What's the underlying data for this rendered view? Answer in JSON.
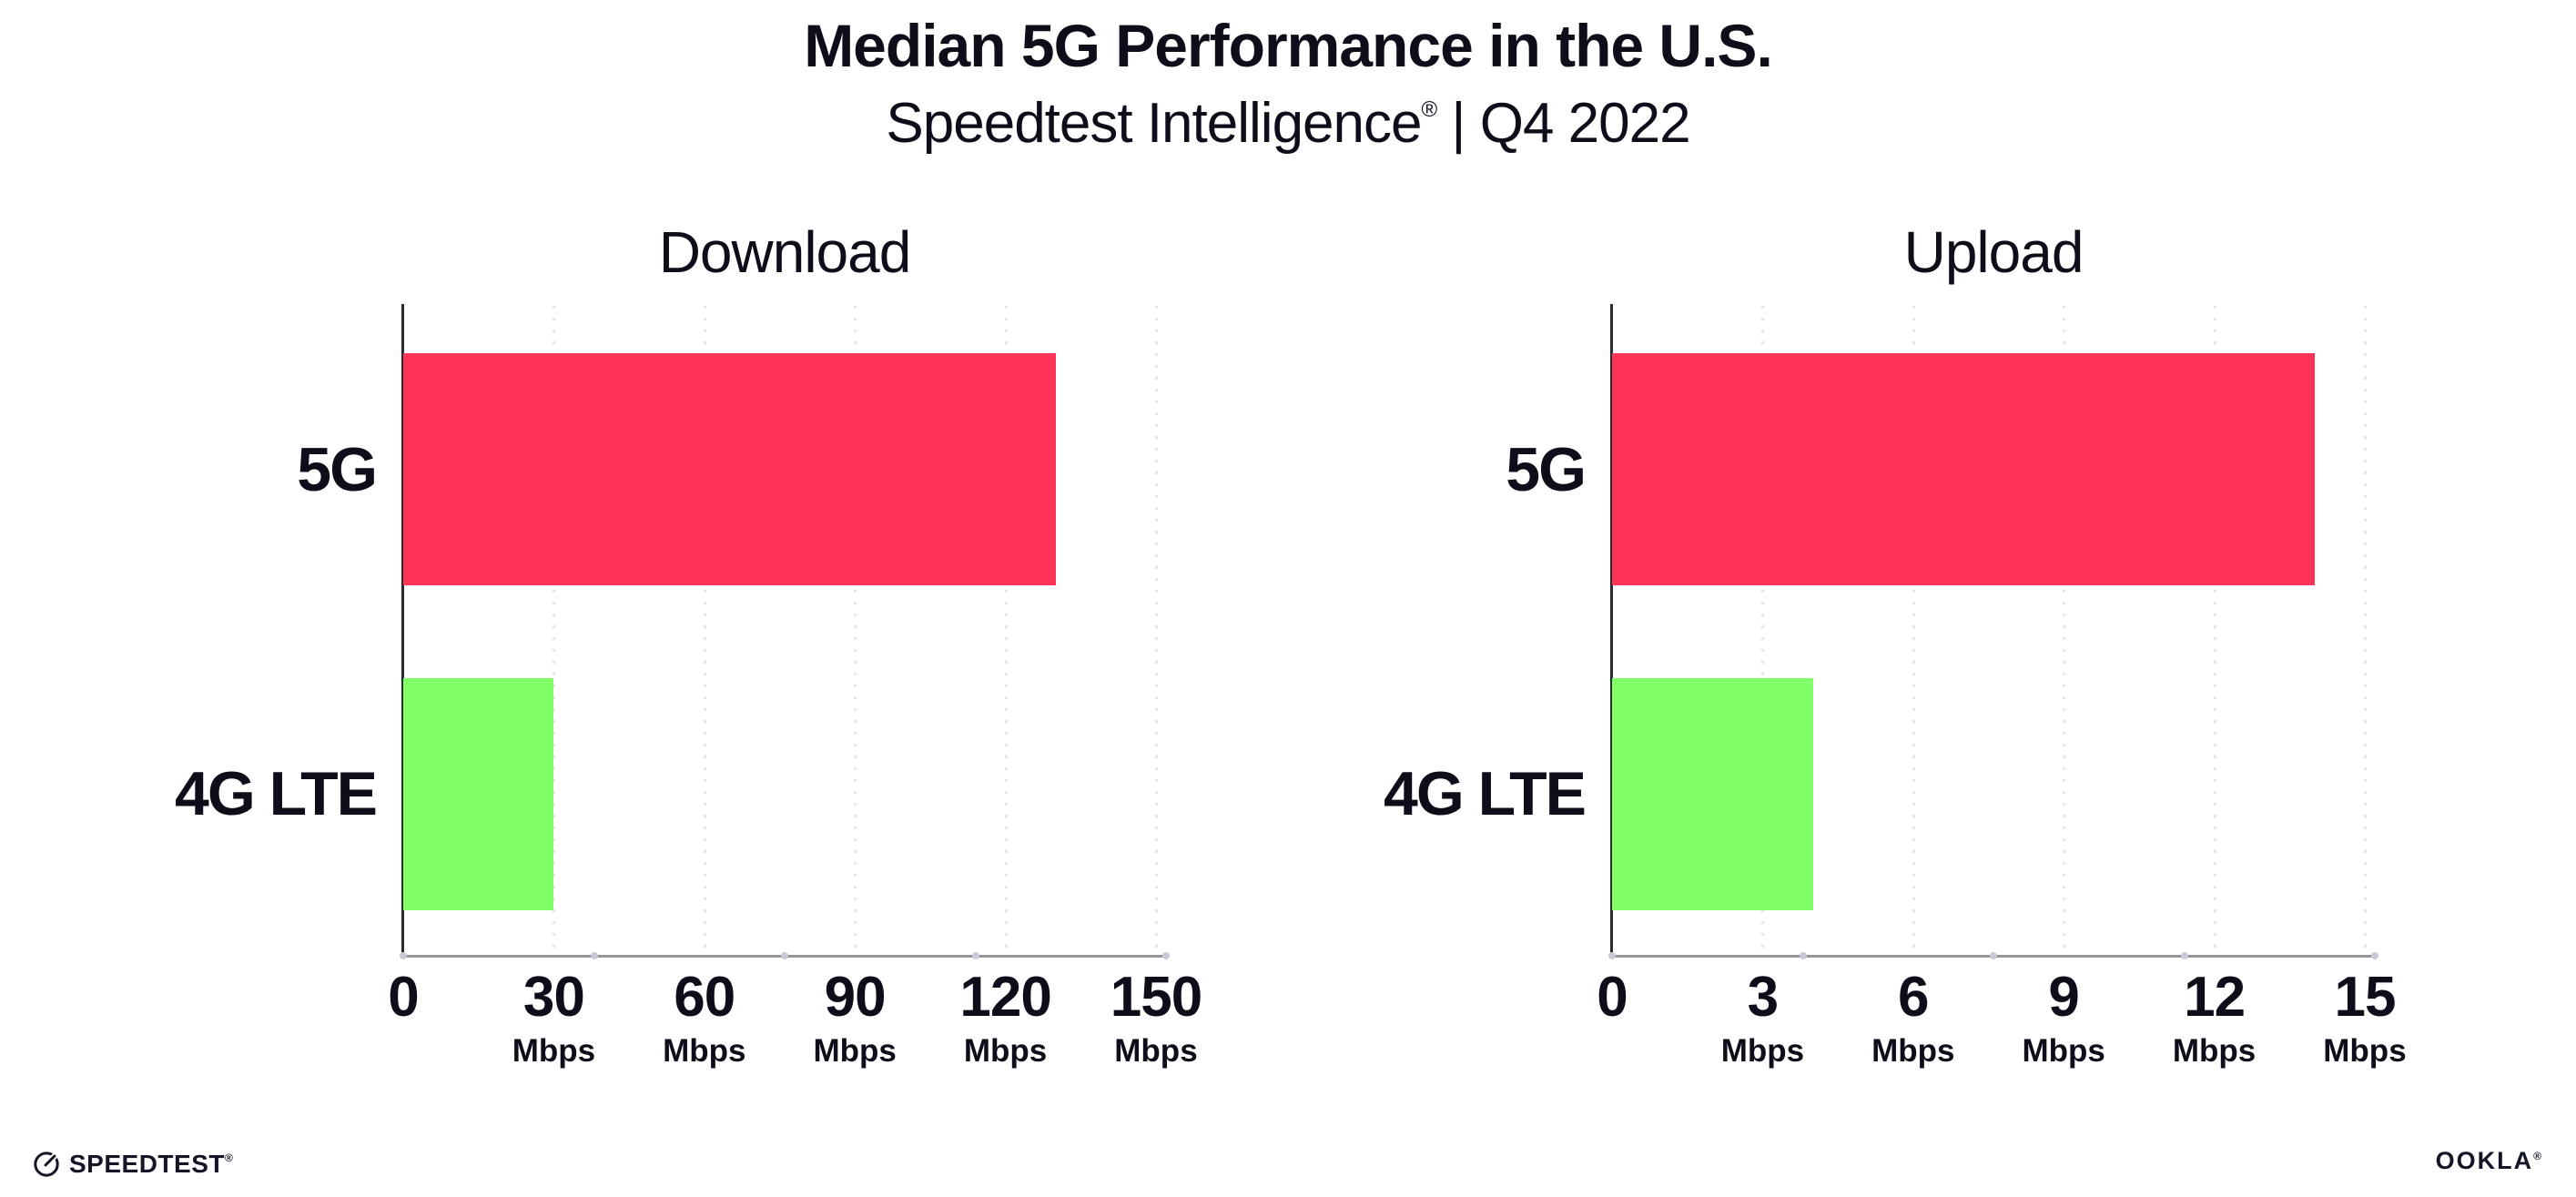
{
  "header": {
    "title": "Median 5G Performance in the U.S.",
    "subtitle_brand": "Speedtest Intelligence",
    "subtitle_reg": "®",
    "subtitle_rest": " | Q4 2022"
  },
  "footer": {
    "speedtest_label": "SPEEDTEST",
    "speedtest_mark": "®",
    "ookla_label": "OOKLA",
    "ookla_mark": "®"
  },
  "icons": {
    "speedtest_gauge": "speedtest-gauge-icon"
  },
  "colors": {
    "bar_5g": "#FF3356",
    "bar_4g_lte": "#80FF66",
    "gridline": "#E4E4EE",
    "axis_left_spine": "#2B2B33",
    "axis_bottom_spine": "#969696",
    "text": "#0E0E1B",
    "logo_ink": "#141526"
  },
  "chart_data": [
    {
      "type": "bar",
      "orientation": "horizontal",
      "title": "Download",
      "categories": [
        "5G",
        "4G LTE"
      ],
      "values": [
        130,
        30
      ],
      "unit": "Mbps",
      "xlim": [
        0,
        152
      ],
      "xticks": [
        0,
        30,
        60,
        90,
        120,
        150
      ],
      "bar_colors": [
        "#FF3356",
        "#80FF66"
      ],
      "grid": "dotted vertical line at each tick",
      "legend": "none"
    },
    {
      "type": "bar",
      "orientation": "horizontal",
      "title": "Upload",
      "categories": [
        "5G",
        "4G LTE"
      ],
      "values": [
        14,
        4
      ],
      "unit": "Mbps",
      "xlim": [
        0,
        15.2
      ],
      "xticks": [
        0,
        3,
        6,
        9,
        12,
        15
      ],
      "bar_colors": [
        "#FF3356",
        "#80FF66"
      ],
      "grid": "dotted vertical line at each tick",
      "legend": "none"
    }
  ]
}
